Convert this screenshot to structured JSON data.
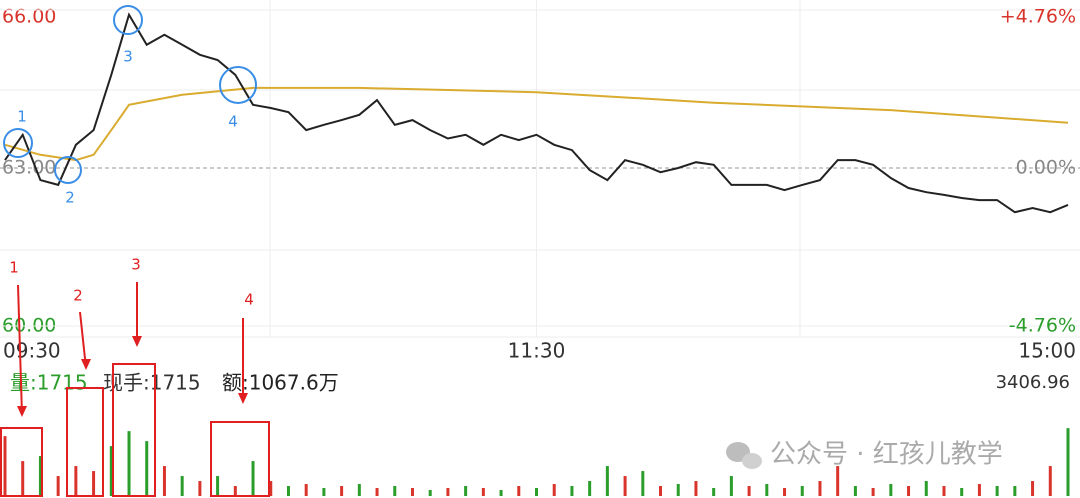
{
  "chart_data": [
    {
      "type": "line",
      "xlim": [
        0,
        240
      ],
      "xticks": [
        {
          "value": 0,
          "label": "09:30"
        },
        {
          "value": 120,
          "label": "11:30"
        },
        {
          "value": 240,
          "label": "15:00"
        }
      ],
      "ylim": [
        60,
        66
      ],
      "yticks": [
        {
          "value": 66,
          "label": "66.00"
        },
        {
          "value": 63,
          "label": "63.00"
        },
        {
          "value": 60,
          "label": "60.00"
        }
      ],
      "y2lim": [
        -4.76,
        4.76
      ],
      "y2ticks": [
        {
          "value": 4.76,
          "label": "+4.76%"
        },
        {
          "value": 0,
          "label": "0.00%"
        },
        {
          "value": -4.76,
          "label": "-4.76%"
        }
      ],
      "series": [
        {
          "color": "#222222",
          "x": [
            0,
            4,
            8,
            12,
            16,
            20,
            24,
            28,
            32,
            36,
            40,
            44,
            48,
            52,
            56,
            60,
            64,
            68,
            72,
            76,
            80,
            84,
            88,
            92,
            96,
            100,
            104,
            108,
            112,
            116,
            120,
            124,
            128,
            132,
            136,
            140,
            144,
            148,
            152,
            156,
            160,
            164,
            168,
            172,
            176,
            180,
            184,
            188,
            192,
            196,
            200,
            204,
            208,
            212,
            216,
            220,
            224,
            228,
            232,
            236,
            240
          ],
          "values": [
            63.15,
            63.63,
            62.77,
            62.68,
            63.44,
            63.72,
            64.77,
            65.91,
            65.34,
            65.53,
            65.34,
            65.15,
            65.05,
            64.77,
            64.2,
            64.14,
            64.06,
            63.72,
            63.82,
            63.91,
            64.01,
            64.29,
            63.82,
            63.91,
            63.72,
            63.56,
            63.63,
            63.44,
            63.63,
            63.53,
            63.63,
            63.44,
            63.34,
            62.96,
            62.77,
            63.15,
            63.06,
            62.92,
            63.0,
            63.11,
            63.06,
            62.68,
            62.68,
            62.68,
            62.58,
            62.68,
            62.77,
            63.15,
            63.15,
            63.06,
            62.81,
            62.62,
            62.54,
            62.49,
            62.43,
            62.39,
            62.39,
            62.16,
            62.24,
            62.16,
            62.3
          ]
        },
        {
          "color": "#d9ab2e",
          "x": [
            0,
            8,
            16,
            20,
            24,
            28,
            40,
            56,
            80,
            120,
            160,
            200,
            240
          ],
          "values": [
            63.44,
            63.25,
            63.15,
            63.25,
            63.72,
            64.2,
            64.39,
            64.52,
            64.52,
            64.44,
            64.24,
            64.1,
            63.86
          ]
        }
      ],
      "annotations": [
        "1",
        "2",
        "3",
        "4"
      ]
    },
    {
      "type": "bar",
      "xlim": [
        0,
        240
      ],
      "ylim": [
        0,
        3406.96
      ],
      "yticks": [
        3406.96
      ],
      "x": [
        0,
        4,
        8,
        12,
        16,
        20,
        24,
        28,
        32,
        36,
        40,
        44,
        48,
        52,
        56,
        60,
        64,
        68,
        72,
        76,
        80,
        84,
        88,
        92,
        96,
        100,
        104,
        108,
        112,
        116,
        120,
        124,
        128,
        132,
        136,
        140,
        144,
        148,
        152,
        156,
        160,
        164,
        168,
        172,
        176,
        180,
        184,
        188,
        192,
        196,
        200,
        204,
        208,
        212,
        216,
        220,
        224,
        228,
        232,
        236,
        240
      ],
      "values": [
        3000,
        1750,
        2000,
        1000,
        1500,
        1250,
        2500,
        3250,
        2750,
        1500,
        1000,
        750,
        1000,
        500,
        1750,
        750,
        500,
        600,
        400,
        500,
        600,
        400,
        500,
        400,
        300,
        400,
        500,
        400,
        300,
        500,
        400,
        600,
        500,
        750,
        1500,
        1000,
        1250,
        500,
        600,
        750,
        400,
        1000,
        500,
        600,
        400,
        500,
        750,
        1500,
        500,
        400,
        600,
        500,
        750,
        500,
        400,
        600,
        500,
        500,
        750,
        1500,
        3400
      ],
      "bar_colors": [
        "#d9342b",
        "#d9342b",
        "#2a9d2a",
        "#d9342b",
        "#d9342b",
        "#d9342b",
        "#2a9d2a",
        "#2a9d2a",
        "#2a9d2a",
        "#d9342b",
        "#2a9d2a",
        "#d9342b",
        "#2a9d2a",
        "#d9342b",
        "#2a9d2a",
        "#d9342b",
        "#2a9d2a",
        "#d9342b",
        "#2a9d2a",
        "#d9342b",
        "#2a9d2a",
        "#d9342b",
        "#2a9d2a",
        "#d9342b",
        "#2a9d2a",
        "#d9342b",
        "#2a9d2a",
        "#d9342b",
        "#2a9d2a",
        "#d9342b",
        "#2a9d2a",
        "#d9342b",
        "#2a9d2a",
        "#2a9d2a",
        "#2a9d2a",
        "#d9342b",
        "#2a9d2a",
        "#d9342b",
        "#2a9d2a",
        "#d9342b",
        "#2a9d2a",
        "#2a9d2a",
        "#d9342b",
        "#2a9d2a",
        "#d9342b",
        "#2a9d2a",
        "#d9342b",
        "#d9342b",
        "#2a9d2a",
        "#d9342b",
        "#2a9d2a",
        "#d9342b",
        "#2a9d2a",
        "#d9342b",
        "#2a9d2a",
        "#d9342b",
        "#2a9d2a",
        "#2a9d2a",
        "#d9342b",
        "#d9342b",
        "#2a9d2a"
      ],
      "annotations": [
        "1",
        "2",
        "3",
        "4"
      ]
    }
  ],
  "info": {
    "volume": "量:1715",
    "hand": "现手:1715",
    "amount": "额:1067.6万"
  },
  "watermark": "公众号 · 红孩儿教学"
}
